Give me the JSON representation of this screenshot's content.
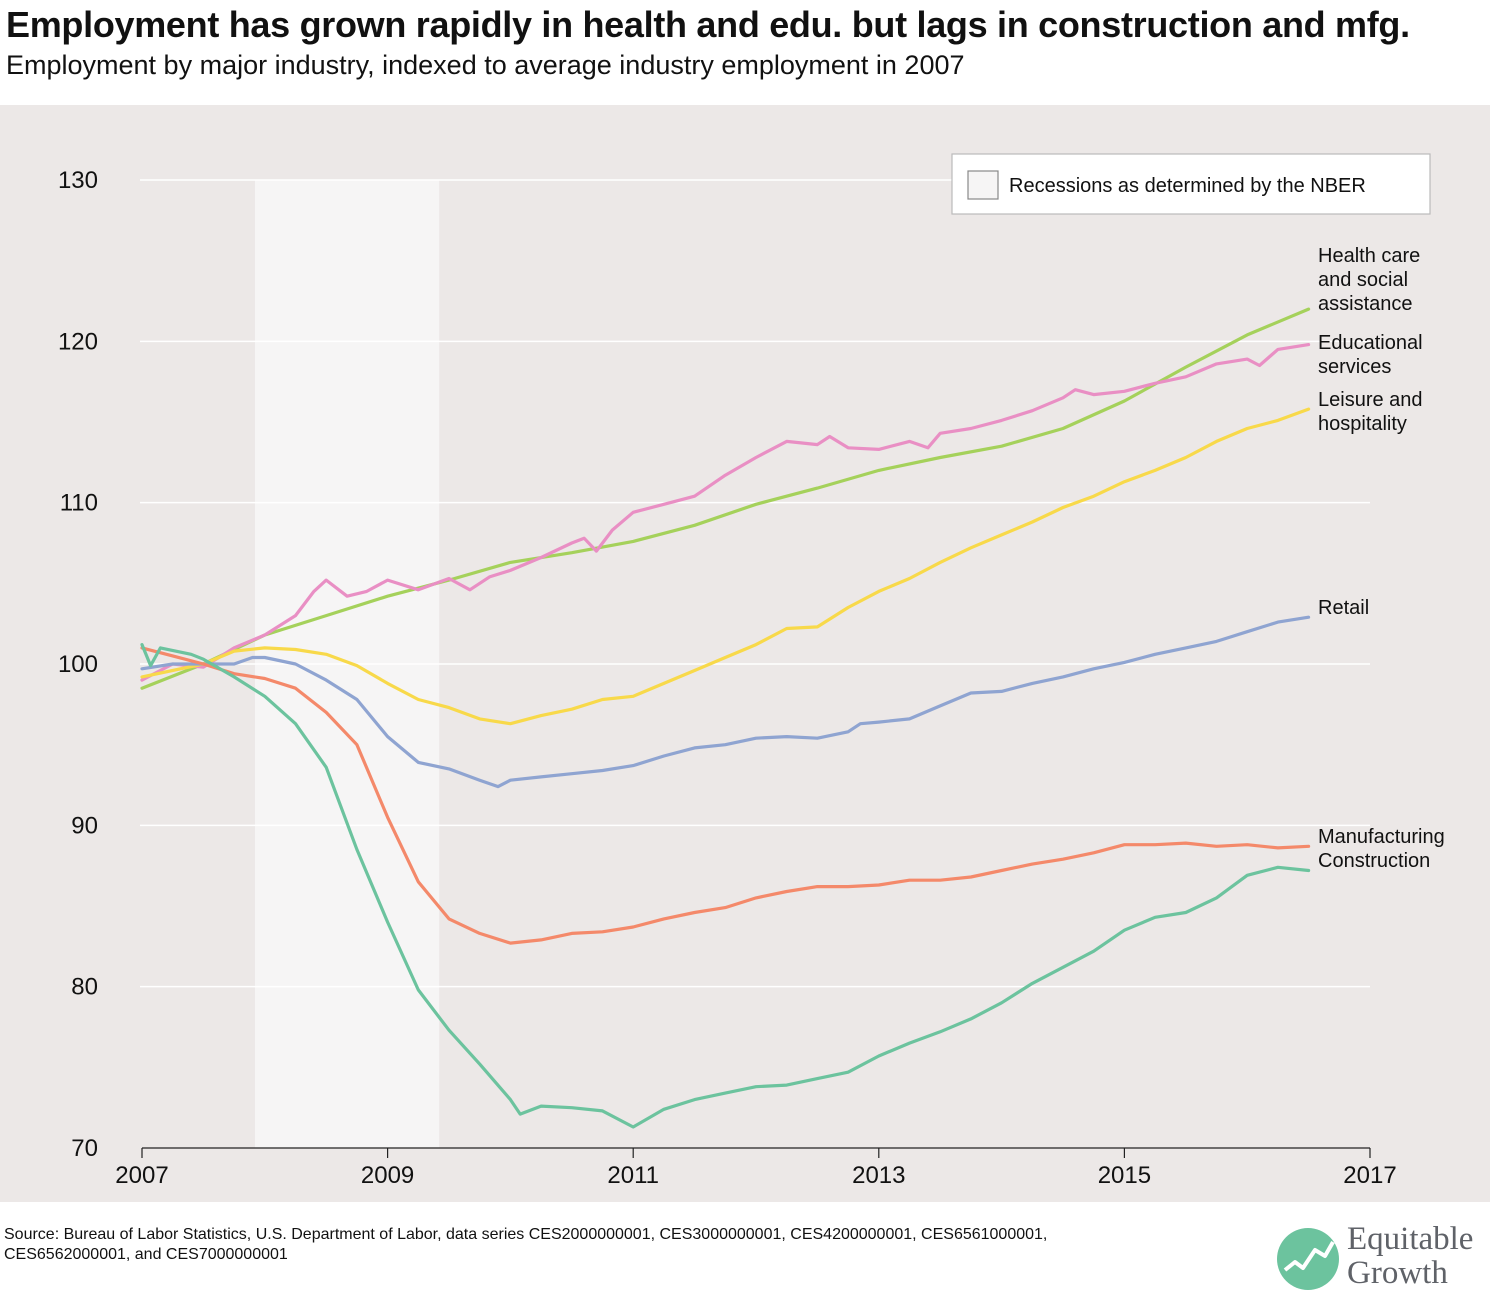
{
  "title": "Employment has grown rapidly in health and edu. but lags in construction and mfg.",
  "subtitle": "Employment by major industry, indexed to average industry employment in 2007",
  "source": "Source: Bureau of Labor Statistics, U.S. Department of Labor, data series CES2000000001, CES3000000001, CES4200000001, CES6561000001, CES6562000001, and CES7000000001",
  "logo": {
    "line1": "Equitable",
    "line2": "Growth",
    "color": "#5f6268",
    "mark_color": "#6cc39e"
  },
  "chart_data": {
    "type": "line",
    "xlim": [
      2007,
      2017
    ],
    "ylim": [
      70,
      130
    ],
    "y_ticks": [
      "70",
      "80",
      "90",
      "100",
      "110",
      "120",
      "130"
    ],
    "x_ticks": [
      "2007",
      "2009",
      "2011",
      "2013",
      "2015",
      "2017"
    ],
    "grid": true,
    "background_color": "#ece8e7",
    "recession": {
      "start": 2007.92,
      "end": 2009.42,
      "legend_label": "Recessions as determined by the NBER",
      "color": "#f6f5f5"
    },
    "legend_position": "top-right",
    "series": [
      {
        "name": "Health care and social assistance",
        "color": "#a5d15b",
        "x": [
          2007.0,
          2007.5,
          2008.0,
          2008.5,
          2009.0,
          2009.5,
          2010.0,
          2010.5,
          2011.0,
          2011.5,
          2012.0,
          2012.5,
          2013.0,
          2013.5,
          2014.0,
          2014.5,
          2015.0,
          2015.5,
          2016.0,
          2016.5
        ],
        "values": [
          98.5,
          100.0,
          101.8,
          103.0,
          104.2,
          105.2,
          106.3,
          106.9,
          107.6,
          108.6,
          109.9,
          110.9,
          112.0,
          112.8,
          113.5,
          114.6,
          116.3,
          118.4,
          120.4,
          122.0
        ]
      },
      {
        "name": "Educational services",
        "color": "#e98fc4",
        "x": [
          2007.0,
          2007.25,
          2007.5,
          2007.75,
          2008.0,
          2008.25,
          2008.4,
          2008.5,
          2008.67,
          2008.83,
          2009.0,
          2009.25,
          2009.5,
          2009.67,
          2009.83,
          2010.0,
          2010.25,
          2010.5,
          2010.6,
          2010.7,
          2010.83,
          2011.0,
          2011.25,
          2011.5,
          2011.75,
          2012.0,
          2012.25,
          2012.5,
          2012.6,
          2012.75,
          2013.0,
          2013.25,
          2013.4,
          2013.5,
          2013.75,
          2014.0,
          2014.25,
          2014.5,
          2014.6,
          2014.75,
          2015.0,
          2015.25,
          2015.5,
          2015.75,
          2016.0,
          2016.1,
          2016.25,
          2016.5
        ],
        "values": [
          99.0,
          100.0,
          99.8,
          101.0,
          101.8,
          103.0,
          104.5,
          105.2,
          104.2,
          104.5,
          105.2,
          104.6,
          105.3,
          104.6,
          105.4,
          105.8,
          106.6,
          107.5,
          107.8,
          107.0,
          108.3,
          109.4,
          109.9,
          110.4,
          111.7,
          112.8,
          113.8,
          113.6,
          114.1,
          113.4,
          113.3,
          113.8,
          113.4,
          114.3,
          114.6,
          115.1,
          115.7,
          116.5,
          117.0,
          116.7,
          116.9,
          117.4,
          117.8,
          118.6,
          118.9,
          118.5,
          119.5,
          119.8
        ]
      },
      {
        "name": "Leisure and hospitality",
        "color": "#f8d94a",
        "x": [
          2007.0,
          2007.5,
          2007.75,
          2008.0,
          2008.25,
          2008.5,
          2008.75,
          2009.0,
          2009.25,
          2009.5,
          2009.75,
          2010.0,
          2010.25,
          2010.5,
          2010.75,
          2011.0,
          2011.25,
          2011.5,
          2011.75,
          2012.0,
          2012.25,
          2012.5,
          2012.75,
          2013.0,
          2013.25,
          2013.5,
          2013.75,
          2014.0,
          2014.25,
          2014.5,
          2014.75,
          2015.0,
          2015.25,
          2015.5,
          2015.75,
          2016.0,
          2016.25,
          2016.5
        ],
        "values": [
          99.2,
          100.0,
          100.8,
          101.0,
          100.9,
          100.6,
          99.9,
          98.8,
          97.8,
          97.3,
          96.6,
          96.3,
          96.8,
          97.2,
          97.8,
          98.0,
          98.8,
          99.6,
          100.4,
          101.2,
          102.2,
          102.3,
          103.5,
          104.5,
          105.3,
          106.3,
          107.2,
          108.0,
          108.8,
          109.7,
          110.4,
          111.3,
          112.0,
          112.8,
          113.8,
          114.6,
          115.1,
          115.8
        ]
      },
      {
        "name": "Retail",
        "color": "#8fa4d1",
        "x": [
          2007.0,
          2007.25,
          2007.5,
          2007.75,
          2007.9,
          2008.0,
          2008.25,
          2008.5,
          2008.75,
          2009.0,
          2009.25,
          2009.5,
          2009.75,
          2009.9,
          2010.0,
          2010.25,
          2010.5,
          2010.75,
          2011.0,
          2011.25,
          2011.5,
          2011.75,
          2012.0,
          2012.25,
          2012.5,
          2012.75,
          2012.85,
          2013.0,
          2013.25,
          2013.5,
          2013.75,
          2014.0,
          2014.25,
          2014.5,
          2014.75,
          2015.0,
          2015.25,
          2015.5,
          2015.75,
          2016.0,
          2016.25,
          2016.5
        ],
        "values": [
          99.7,
          100.0,
          100.0,
          100.0,
          100.4,
          100.4,
          100.0,
          99.0,
          97.8,
          95.5,
          93.9,
          93.5,
          92.8,
          92.4,
          92.8,
          93.0,
          93.2,
          93.4,
          93.7,
          94.3,
          94.8,
          95.0,
          95.4,
          95.5,
          95.4,
          95.8,
          96.3,
          96.4,
          96.6,
          97.4,
          98.2,
          98.3,
          98.8,
          99.2,
          99.7,
          100.1,
          100.6,
          101.0,
          101.4,
          102.0,
          102.6,
          102.9
        ]
      },
      {
        "name": "Manufacturing",
        "color": "#f4896a",
        "x": [
          2007.0,
          2007.25,
          2007.5,
          2007.75,
          2008.0,
          2008.25,
          2008.5,
          2008.75,
          2009.0,
          2009.25,
          2009.5,
          2009.75,
          2010.0,
          2010.25,
          2010.5,
          2010.75,
          2011.0,
          2011.25,
          2011.5,
          2011.75,
          2012.0,
          2012.25,
          2012.5,
          2012.75,
          2013.0,
          2013.25,
          2013.5,
          2013.75,
          2014.0,
          2014.25,
          2014.5,
          2014.75,
          2015.0,
          2015.25,
          2015.5,
          2015.75,
          2016.0,
          2016.25,
          2016.5
        ],
        "values": [
          101.0,
          100.5,
          100.0,
          99.4,
          99.1,
          98.5,
          97.0,
          95.0,
          90.5,
          86.5,
          84.2,
          83.3,
          82.7,
          82.9,
          83.3,
          83.4,
          83.7,
          84.2,
          84.6,
          84.9,
          85.5,
          85.9,
          86.2,
          86.2,
          86.3,
          86.6,
          86.6,
          86.8,
          87.2,
          87.6,
          87.9,
          88.3,
          88.8,
          88.8,
          88.9,
          88.7,
          88.8,
          88.6,
          88.7
        ]
      },
      {
        "name": "Construction",
        "color": "#6cc39e",
        "x": [
          2007.0,
          2007.07,
          2007.15,
          2007.4,
          2007.5,
          2007.75,
          2008.0,
          2008.25,
          2008.5,
          2008.75,
          2009.0,
          2009.25,
          2009.5,
          2009.75,
          2010.0,
          2010.08,
          2010.25,
          2010.5,
          2010.75,
          2011.0,
          2011.25,
          2011.5,
          2011.75,
          2012.0,
          2012.25,
          2012.5,
          2012.75,
          2013.0,
          2013.25,
          2013.5,
          2013.75,
          2014.0,
          2014.25,
          2014.5,
          2014.75,
          2015.0,
          2015.25,
          2015.5,
          2015.75,
          2016.0,
          2016.25,
          2016.5
        ],
        "values": [
          101.2,
          99.9,
          101.0,
          100.6,
          100.3,
          99.2,
          98.0,
          96.3,
          93.6,
          88.5,
          84.0,
          79.8,
          77.3,
          75.2,
          73.0,
          72.1,
          72.6,
          72.5,
          72.3,
          71.3,
          72.4,
          73.0,
          73.4,
          73.8,
          73.9,
          74.3,
          74.7,
          75.7,
          76.5,
          77.2,
          78.0,
          79.0,
          80.2,
          81.2,
          82.2,
          83.5,
          84.3,
          84.6,
          85.5,
          86.9,
          87.4,
          87.2
        ]
      }
    ],
    "series_labels": [
      {
        "lines": [
          "Health care",
          "and social",
          "assistance"
        ]
      },
      {
        "lines": [
          "Educational",
          "services"
        ]
      },
      {
        "lines": [
          "Leisure and",
          "hospitality"
        ]
      },
      {
        "lines": [
          "Retail"
        ]
      },
      {
        "lines": [
          "Manufacturing"
        ]
      },
      {
        "lines": [
          "Construction"
        ]
      }
    ]
  }
}
